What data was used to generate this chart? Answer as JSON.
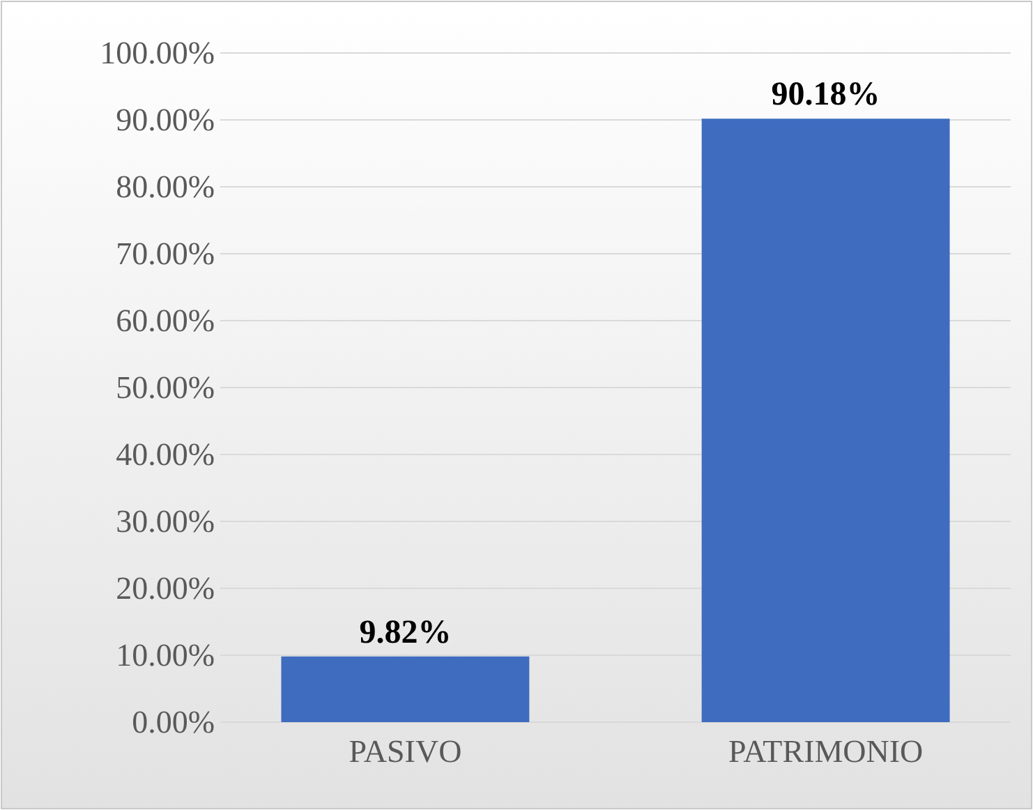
{
  "chart_data": {
    "type": "bar",
    "categories": [
      "PASIVO",
      "PATRIMONIO"
    ],
    "values": [
      9.82,
      90.18
    ],
    "color": "#3f6cbf",
    "ylim": [
      0,
      100
    ],
    "yticks": [
      {
        "value": 0,
        "label": "0.00%"
      },
      {
        "value": 10,
        "label": "10.00%"
      },
      {
        "value": 20,
        "label": "20.00%"
      },
      {
        "value": 30,
        "label": "30.00%"
      },
      {
        "value": 40,
        "label": "40.00%"
      },
      {
        "value": 50,
        "label": "50.00%"
      },
      {
        "value": 60,
        "label": "60.00%"
      },
      {
        "value": 70,
        "label": "70.00%"
      },
      {
        "value": 80,
        "label": "80.00%"
      },
      {
        "value": 90,
        "label": "90.00%"
      },
      {
        "value": 100,
        "label": "100.00%"
      }
    ],
    "value_labels": [
      "9.82%",
      "90.18%"
    ],
    "grid": "y"
  }
}
